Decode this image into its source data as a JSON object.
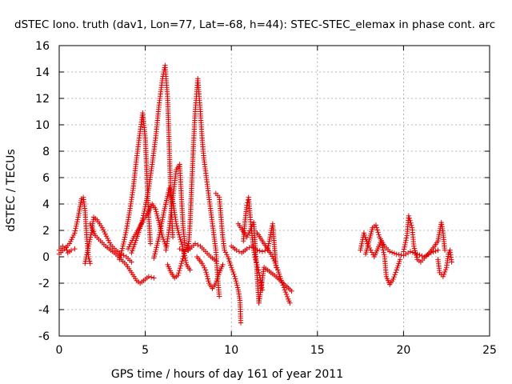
{
  "chart_data": {
    "type": "scatter",
    "title": "dSTEC Iono. truth (dav1, Lon=77, Lat=-68, h=44): STEC-STEC_elemax in phase cont. arc",
    "xlabel": "GPS time / hours of day 161 of year 2011",
    "ylabel": "dSTEC  / TECUs",
    "xlim": [
      0,
      25
    ],
    "ylim": [
      -6,
      16
    ],
    "x_ticks": [
      0,
      5,
      10,
      15,
      20,
      25
    ],
    "y_ticks": [
      -6,
      -4,
      -2,
      0,
      2,
      4,
      6,
      8,
      10,
      12,
      14,
      16
    ],
    "x_tick_labels": [
      "0",
      "5",
      "10",
      "15",
      "20",
      "25"
    ],
    "y_tick_labels": [
      "-6",
      "-4",
      "-2",
      "0",
      "2",
      "4",
      "6",
      "8",
      "10",
      "12",
      "14",
      "16"
    ],
    "grid": true,
    "marker": "plus",
    "color": "#e00000",
    "series": [
      {
        "points": [
          [
            0.0,
            0.2
          ],
          [
            0.3,
            0.6
          ],
          [
            0.6,
            1.0
          ],
          [
            0.9,
            1.8
          ],
          [
            1.1,
            3.0
          ],
          [
            1.3,
            4.4
          ],
          [
            1.4,
            4.5
          ],
          [
            1.5,
            3.5
          ],
          [
            1.6,
            1.5
          ],
          [
            1.7,
            0.0
          ],
          [
            1.8,
            -0.5
          ]
        ]
      },
      {
        "points": [
          [
            0.0,
            0.5
          ],
          [
            0.2,
            0.8
          ],
          [
            0.4,
            0.7
          ],
          [
            0.5,
            0.3
          ],
          [
            0.7,
            0.5
          ],
          [
            0.9,
            0.6
          ]
        ]
      },
      {
        "points": [
          [
            1.5,
            -0.5
          ],
          [
            1.7,
            0.8
          ],
          [
            1.9,
            2.0
          ],
          [
            2.0,
            3.0
          ],
          [
            2.2,
            2.8
          ],
          [
            2.5,
            2.2
          ],
          [
            2.8,
            1.4
          ],
          [
            3.0,
            0.9
          ],
          [
            3.3,
            0.5
          ],
          [
            3.6,
            0.2
          ],
          [
            3.9,
            0.0
          ],
          [
            4.2,
            -0.4
          ]
        ]
      },
      {
        "points": [
          [
            1.8,
            2.5
          ],
          [
            2.1,
            1.6
          ],
          [
            2.4,
            1.2
          ],
          [
            2.7,
            0.8
          ],
          [
            3.0,
            0.5
          ],
          [
            3.3,
            0.2
          ],
          [
            3.6,
            -0.2
          ],
          [
            3.9,
            -0.6
          ],
          [
            4.2,
            -1.2
          ],
          [
            4.5,
            -1.8
          ],
          [
            4.7,
            -2.0
          ],
          [
            4.9,
            -1.8
          ],
          [
            5.2,
            -1.5
          ],
          [
            5.5,
            -1.6
          ]
        ]
      },
      {
        "points": [
          [
            3.5,
            -0.2
          ],
          [
            3.7,
            0.8
          ],
          [
            3.9,
            2.0
          ],
          [
            4.1,
            3.5
          ],
          [
            4.3,
            5.2
          ],
          [
            4.5,
            7.5
          ],
          [
            4.7,
            9.5
          ],
          [
            4.85,
            10.9
          ],
          [
            5.0,
            9.0
          ],
          [
            5.1,
            6.0
          ],
          [
            5.2,
            3.0
          ],
          [
            5.3,
            1.0
          ]
        ]
      },
      {
        "points": [
          [
            4.2,
            0.3
          ],
          [
            4.5,
            1.4
          ],
          [
            4.8,
            2.6
          ],
          [
            5.0,
            3.8
          ],
          [
            5.2,
            5.2
          ],
          [
            5.4,
            7.0
          ],
          [
            5.6,
            9.0
          ],
          [
            5.8,
            11.5
          ],
          [
            6.0,
            13.5
          ],
          [
            6.15,
            14.5
          ],
          [
            6.3,
            12.0
          ],
          [
            6.4,
            8.0
          ],
          [
            6.5,
            4.0
          ],
          [
            6.6,
            1.5
          ]
        ]
      },
      {
        "points": [
          [
            4.0,
            0.6
          ],
          [
            4.3,
            1.4
          ],
          [
            4.6,
            2.1
          ],
          [
            4.9,
            2.8
          ],
          [
            5.2,
            3.4
          ],
          [
            5.4,
            4.0
          ],
          [
            5.6,
            3.6
          ],
          [
            5.8,
            2.6
          ],
          [
            6.0,
            1.5
          ],
          [
            6.2,
            0.8
          ]
        ]
      },
      {
        "points": [
          [
            5.5,
            -0.1
          ],
          [
            5.8,
            1.5
          ],
          [
            6.1,
            3.5
          ],
          [
            6.4,
            5.2
          ],
          [
            6.6,
            4.2
          ],
          [
            6.8,
            2.5
          ],
          [
            7.0,
            1.5
          ],
          [
            7.2,
            0.6
          ],
          [
            7.4,
            -0.6
          ],
          [
            7.6,
            -1.0
          ]
        ]
      },
      {
        "points": [
          [
            6.2,
            0.5
          ],
          [
            6.4,
            2.2
          ],
          [
            6.6,
            4.5
          ],
          [
            6.8,
            6.6
          ],
          [
            7.0,
            7.0
          ],
          [
            7.1,
            4.5
          ],
          [
            7.2,
            2.2
          ],
          [
            7.3,
            0.9
          ]
        ]
      },
      {
        "points": [
          [
            6.3,
            -0.6
          ],
          [
            6.5,
            -1.2
          ],
          [
            6.7,
            -1.6
          ],
          [
            6.9,
            -1.4
          ],
          [
            7.1,
            -0.5
          ],
          [
            7.3,
            0.4
          ],
          [
            7.5,
            1.0
          ]
        ]
      },
      {
        "points": [
          [
            7.0,
            0.6
          ],
          [
            7.3,
            0.4
          ],
          [
            7.6,
            0.6
          ],
          [
            7.9,
            1.0
          ],
          [
            8.2,
            0.8
          ],
          [
            8.5,
            0.4
          ],
          [
            8.8,
            0.0
          ],
          [
            9.1,
            -0.3
          ]
        ]
      },
      {
        "points": [
          [
            7.5,
            0.5
          ],
          [
            7.6,
            2.5
          ],
          [
            7.7,
            5.5
          ],
          [
            7.8,
            8.5
          ],
          [
            7.9,
            11.0
          ],
          [
            8.05,
            13.5
          ],
          [
            8.2,
            11.0
          ],
          [
            8.3,
            9.0
          ],
          [
            8.4,
            7.5
          ],
          [
            8.6,
            5.5
          ],
          [
            8.8,
            3.5
          ],
          [
            9.0,
            1.5
          ],
          [
            9.1,
            0.5
          ],
          [
            9.2,
            -1.5
          ],
          [
            9.3,
            -3.0
          ]
        ]
      },
      {
        "points": [
          [
            8.0,
            0.0
          ],
          [
            8.3,
            -0.5
          ],
          [
            8.5,
            -1.0
          ],
          [
            8.7,
            -2.0
          ],
          [
            8.9,
            -2.4
          ],
          [
            9.1,
            -2.0
          ],
          [
            9.3,
            -1.2
          ],
          [
            9.5,
            -0.6
          ]
        ]
      },
      {
        "points": [
          [
            9.1,
            4.8
          ],
          [
            9.3,
            4.5
          ],
          [
            9.4,
            3.0
          ],
          [
            9.5,
            1.5
          ],
          [
            9.6,
            0.5
          ],
          [
            9.8,
            0.0
          ],
          [
            10.0,
            -0.8
          ],
          [
            10.2,
            -1.5
          ],
          [
            10.4,
            -2.5
          ],
          [
            10.5,
            -3.3
          ],
          [
            10.55,
            -5.0
          ]
        ]
      },
      {
        "points": [
          [
            10.7,
            1.2
          ],
          [
            10.8,
            2.8
          ],
          [
            10.9,
            3.9
          ],
          [
            11.0,
            4.5
          ],
          [
            11.1,
            3.0
          ],
          [
            11.2,
            1.6
          ],
          [
            11.3,
            0.5
          ],
          [
            11.4,
            -0.2
          ],
          [
            11.5,
            -0.6
          ],
          [
            11.6,
            -1.2
          ],
          [
            11.7,
            -1.8
          ],
          [
            11.8,
            -2.5
          ]
        ]
      },
      {
        "points": [
          [
            11.5,
            1.8
          ],
          [
            11.7,
            1.4
          ],
          [
            11.9,
            1.0
          ],
          [
            12.1,
            0.6
          ],
          [
            12.3,
            0.2
          ],
          [
            12.5,
            -0.3
          ],
          [
            12.7,
            -1.0
          ],
          [
            12.9,
            -1.8
          ],
          [
            13.1,
            -2.5
          ],
          [
            13.3,
            -3.2
          ],
          [
            13.4,
            -3.5
          ]
        ]
      },
      {
        "points": [
          [
            10.0,
            0.8
          ],
          [
            10.3,
            0.5
          ],
          [
            10.6,
            0.3
          ],
          [
            10.9,
            0.6
          ],
          [
            11.2,
            0.8
          ],
          [
            11.5,
            0.5
          ],
          [
            11.8,
            0.4
          ],
          [
            12.1,
            0.5
          ],
          [
            12.4,
            2.5
          ],
          [
            12.6,
            -0.8
          ]
        ]
      },
      {
        "points": [
          [
            10.4,
            2.5
          ],
          [
            10.9,
            1.5
          ],
          [
            11.3,
            2.6
          ],
          [
            11.6,
            -3.5
          ],
          [
            11.9,
            -0.8
          ],
          [
            12.6,
            -1.5
          ],
          [
            13.5,
            -2.6
          ]
        ]
      },
      {
        "points": [
          [
            17.5,
            0.5
          ],
          [
            17.7,
            1.8
          ],
          [
            17.9,
            1.0
          ],
          [
            18.1,
            0.5
          ],
          [
            18.3,
            0.0
          ],
          [
            18.5,
            0.6
          ],
          [
            18.7,
            1.2
          ],
          [
            18.9,
            0.0
          ],
          [
            19.0,
            -1.5
          ],
          [
            19.2,
            -2.1
          ],
          [
            19.4,
            -1.7
          ],
          [
            19.6,
            -1.0
          ],
          [
            19.8,
            -0.2
          ]
        ]
      },
      {
        "points": [
          [
            17.8,
            0.2
          ],
          [
            18.2,
            2.2
          ],
          [
            18.4,
            2.4
          ],
          [
            18.6,
            1.5
          ],
          [
            18.9,
            0.8
          ],
          [
            19.2,
            0.4
          ],
          [
            19.6,
            0.2
          ],
          [
            20.0,
            0.1
          ],
          [
            20.4,
            0.4
          ],
          [
            20.8,
            0.2
          ],
          [
            21.2,
            0.0
          ],
          [
            21.6,
            0.3
          ],
          [
            22.0,
            0.5
          ]
        ]
      },
      {
        "points": [
          [
            20.0,
            0.4
          ],
          [
            20.2,
            1.6
          ],
          [
            20.3,
            3.1
          ],
          [
            20.5,
            2.2
          ],
          [
            20.6,
            0.8
          ],
          [
            20.8,
            -0.2
          ],
          [
            21.0,
            -0.4
          ],
          [
            21.2,
            -0.1
          ],
          [
            21.5,
            0.3
          ],
          [
            21.8,
            0.8
          ],
          [
            22.0,
            1.2
          ],
          [
            22.2,
            2.6
          ],
          [
            22.3,
            1.8
          ],
          [
            22.4,
            0.5
          ]
        ]
      },
      {
        "points": [
          [
            22.0,
            -0.2
          ],
          [
            22.1,
            -1.2
          ],
          [
            22.3,
            -1.5
          ],
          [
            22.5,
            -0.8
          ],
          [
            22.6,
            0.2
          ],
          [
            22.7,
            0.5
          ],
          [
            22.8,
            -0.4
          ]
        ]
      }
    ]
  }
}
